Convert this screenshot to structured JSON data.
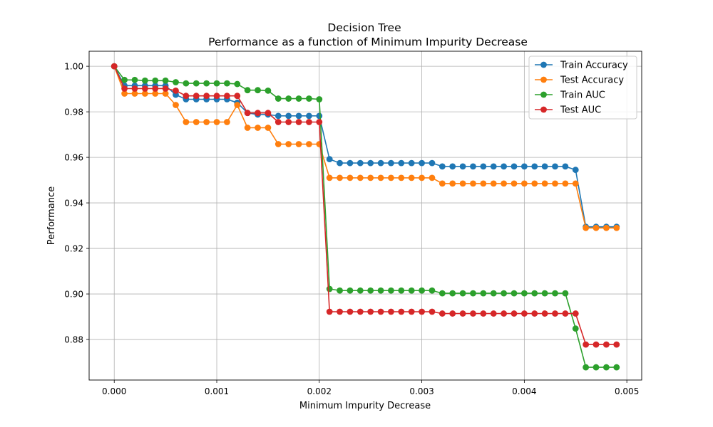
{
  "chart_data": {
    "type": "line",
    "title": "Decision Tree",
    "subtitle": "Performance as a function of Minimum Impurity Decrease",
    "xlabel": "Minimum Impurity Decrease",
    "ylabel": "Performance",
    "xlim": [
      -0.000245,
      0.005145
    ],
    "ylim": [
      0.8622,
      1.0066
    ],
    "x_ticks": [
      0.0,
      0.001,
      0.002,
      0.003,
      0.004,
      0.005
    ],
    "x_tick_labels": [
      "0.000",
      "0.001",
      "0.002",
      "0.003",
      "0.004",
      "0.005"
    ],
    "y_ticks": [
      0.88,
      0.9,
      0.92,
      0.94,
      0.96,
      0.98,
      1.0
    ],
    "y_tick_labels": [
      "0.88",
      "0.90",
      "0.92",
      "0.94",
      "0.96",
      "0.98",
      "1.00"
    ],
    "grid": true,
    "legend_position": "top-right",
    "x": [
      0.0,
      0.0001,
      0.0002,
      0.0003,
      0.0004,
      0.0005,
      0.0006,
      0.0007,
      0.0008,
      0.0009,
      0.001,
      0.0011,
      0.0012,
      0.0013,
      0.0014,
      0.0015,
      0.0016,
      0.0017,
      0.0018,
      0.0019,
      0.002,
      0.0021,
      0.0022,
      0.0023,
      0.0024,
      0.0025,
      0.0026,
      0.0027,
      0.0028,
      0.0029,
      0.003,
      0.0031,
      0.0032,
      0.0033,
      0.0034,
      0.0035,
      0.0036,
      0.0037,
      0.0038,
      0.0039,
      0.004,
      0.0041,
      0.0042,
      0.0043,
      0.0044,
      0.0045,
      0.0046,
      0.0047,
      0.0048,
      0.0049
    ],
    "series": [
      {
        "name": "Train Accuracy",
        "color": "#1f77b4",
        "values": [
          1.0,
          0.9915,
          0.9915,
          0.9915,
          0.9915,
          0.9915,
          0.9875,
          0.9855,
          0.9855,
          0.9855,
          0.9855,
          0.9855,
          0.984,
          0.9795,
          0.9788,
          0.9788,
          0.9782,
          0.9782,
          0.9782,
          0.9782,
          0.9782,
          0.9592,
          0.9575,
          0.9575,
          0.9575,
          0.9575,
          0.9575,
          0.9575,
          0.9575,
          0.9575,
          0.9575,
          0.9575,
          0.956,
          0.956,
          0.956,
          0.956,
          0.956,
          0.956,
          0.956,
          0.956,
          0.956,
          0.956,
          0.956,
          0.956,
          0.956,
          0.9545,
          0.9295,
          0.9295,
          0.9295,
          0.9295
        ]
      },
      {
        "name": "Test Accuracy",
        "color": "#ff7f0e",
        "values": [
          1.0,
          0.988,
          0.988,
          0.988,
          0.988,
          0.988,
          0.983,
          0.9755,
          0.9755,
          0.9755,
          0.9755,
          0.9755,
          0.983,
          0.973,
          0.973,
          0.973,
          0.9658,
          0.9658,
          0.9658,
          0.9658,
          0.9658,
          0.951,
          0.951,
          0.951,
          0.951,
          0.951,
          0.951,
          0.951,
          0.951,
          0.951,
          0.951,
          0.951,
          0.9485,
          0.9485,
          0.9485,
          0.9485,
          0.9485,
          0.9485,
          0.9485,
          0.9485,
          0.9485,
          0.9485,
          0.9485,
          0.9485,
          0.9485,
          0.9485,
          0.929,
          0.929,
          0.929,
          0.929
        ]
      },
      {
        "name": "Train AUC",
        "color": "#2ca02c",
        "values": [
          1.0,
          0.994,
          0.994,
          0.9937,
          0.9937,
          0.9937,
          0.993,
          0.9925,
          0.9925,
          0.9925,
          0.9925,
          0.9925,
          0.9922,
          0.9895,
          0.9895,
          0.9893,
          0.9858,
          0.9858,
          0.9858,
          0.9858,
          0.9855,
          0.9022,
          0.9015,
          0.9015,
          0.9015,
          0.9015,
          0.9015,
          0.9015,
          0.9015,
          0.9015,
          0.9015,
          0.9015,
          0.9003,
          0.9003,
          0.9003,
          0.9003,
          0.9003,
          0.9003,
          0.9003,
          0.9003,
          0.9003,
          0.9003,
          0.9003,
          0.9003,
          0.9003,
          0.8848,
          0.8678,
          0.8678,
          0.8678,
          0.8678
        ]
      },
      {
        "name": "Test AUC",
        "color": "#d62728",
        "values": [
          1.0,
          0.9902,
          0.9902,
          0.9902,
          0.9902,
          0.9902,
          0.9893,
          0.987,
          0.987,
          0.987,
          0.987,
          0.987,
          0.987,
          0.9795,
          0.9795,
          0.9795,
          0.9755,
          0.9755,
          0.9755,
          0.9755,
          0.9755,
          0.8922,
          0.8922,
          0.8922,
          0.8922,
          0.8922,
          0.8922,
          0.8922,
          0.8922,
          0.8922,
          0.8922,
          0.8922,
          0.8914,
          0.8914,
          0.8914,
          0.8914,
          0.8914,
          0.8914,
          0.8914,
          0.8914,
          0.8914,
          0.8914,
          0.8914,
          0.8914,
          0.8914,
          0.8914,
          0.8778,
          0.8778,
          0.8778,
          0.8778
        ]
      }
    ]
  }
}
